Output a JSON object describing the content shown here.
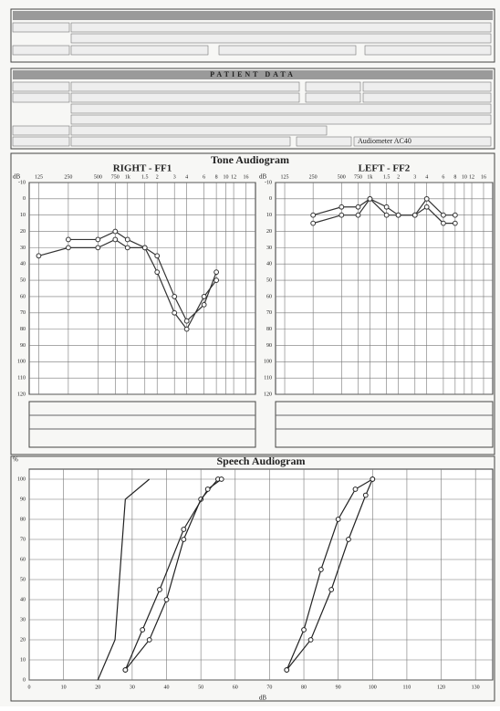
{
  "tone_title": "Tone Audiogram",
  "patient_data": {
    "title": "PATIENT DATA",
    "audiometer": "Audiometer AC40"
  },
  "chart_data": [
    {
      "type": "line",
      "title": "RIGHT - FF1",
      "ylabel": "dB",
      "x_log": true,
      "y_inverted": true,
      "xtick_position": "top",
      "grid": true,
      "xlim": [
        100,
        20000
      ],
      "ylim": [
        -10,
        120
      ],
      "xticks": [
        125,
        250,
        500,
        750,
        {
          "value": 1000,
          "label": "1k"
        },
        {
          "value": 1500,
          "label": "1.5"
        },
        {
          "value": 2000,
          "label": "2"
        },
        {
          "value": 3000,
          "label": "3"
        },
        {
          "value": 4000,
          "label": "4"
        },
        {
          "value": 6000,
          "label": "6"
        },
        {
          "value": 8000,
          "label": "8"
        },
        {
          "value": 10000,
          "label": "10"
        },
        {
          "value": 12000,
          "label": "12"
        },
        {
          "value": 16000,
          "label": "16"
        }
      ],
      "yticks": [
        -10,
        0,
        10,
        20,
        30,
        40,
        50,
        60,
        70,
        80,
        90,
        100,
        110,
        120
      ],
      "series": [
        {
          "color": "#333333",
          "marker": "circle",
          "x": [
            125,
            250,
            500,
            750,
            1000,
            1500,
            2000,
            3000,
            4000,
            6000,
            8000
          ],
          "values": [
            35,
            30,
            30,
            25,
            30,
            30,
            35,
            60,
            75,
            65,
            45
          ]
        },
        {
          "color": "#333333",
          "marker": "circle",
          "x": [
            250,
            500,
            750,
            1000,
            1500,
            2000,
            3000,
            4000,
            6000,
            8000
          ],
          "values": [
            25,
            25,
            20,
            25,
            30,
            45,
            70,
            80,
            60,
            50
          ]
        }
      ]
    },
    {
      "type": "line",
      "title": "LEFT - FF2",
      "ylabel": "dB",
      "x_log": true,
      "y_inverted": true,
      "xtick_position": "top",
      "grid": true,
      "xlim": [
        100,
        20000
      ],
      "ylim": [
        -10,
        120
      ],
      "xticks": [
        125,
        250,
        500,
        750,
        {
          "value": 1000,
          "label": "1k"
        },
        {
          "value": 1500,
          "label": "1.5"
        },
        {
          "value": 2000,
          "label": "2"
        },
        {
          "value": 3000,
          "label": "3"
        },
        {
          "value": 4000,
          "label": "4"
        },
        {
          "value": 6000,
          "label": "6"
        },
        {
          "value": 8000,
          "label": "8"
        },
        {
          "value": 10000,
          "label": "10"
        },
        {
          "value": 12000,
          "label": "12"
        },
        {
          "value": 16000,
          "label": "16"
        }
      ],
      "yticks": [
        -10,
        0,
        10,
        20,
        30,
        40,
        50,
        60,
        70,
        80,
        90,
        100,
        110,
        120
      ],
      "series": [
        {
          "color": "#333333",
          "marker": "circle",
          "x": [
            250,
            500,
            750,
            1000,
            1500,
            2000,
            3000,
            4000,
            6000,
            8000
          ],
          "values": [
            10,
            5,
            5,
            0,
            5,
            10,
            10,
            0,
            10,
            10
          ]
        },
        {
          "color": "#333333",
          "marker": "circle",
          "x": [
            250,
            500,
            750,
            1000,
            1500,
            2000,
            3000,
            4000,
            6000,
            8000
          ],
          "values": [
            15,
            10,
            10,
            0,
            10,
            10,
            10,
            5,
            15,
            15
          ]
        }
      ]
    },
    {
      "type": "line",
      "title": "Speech Audiogram",
      "ylabel": "%",
      "xlabel": "dB",
      "x_log": false,
      "y_inverted": false,
      "xtick_position": "bottom",
      "grid": true,
      "xlim": [
        0,
        135
      ],
      "ylim": [
        0,
        105
      ],
      "xticks": [
        0,
        10,
        20,
        30,
        40,
        50,
        60,
        70,
        80,
        90,
        100,
        110,
        120,
        130
      ],
      "yticks": [
        0,
        10,
        20,
        30,
        40,
        50,
        60,
        70,
        80,
        90,
        100
      ],
      "series": [
        {
          "color": "#222222",
          "marker": "none",
          "x": [
            20,
            25,
            28,
            35
          ],
          "values": [
            0,
            20,
            90,
            100
          ]
        },
        {
          "color": "#222222",
          "marker": "circle",
          "x": [
            28,
            35,
            40,
            45,
            50,
            55
          ],
          "values": [
            5,
            20,
            40,
            70,
            90,
            100
          ]
        },
        {
          "color": "#222222",
          "marker": "circle",
          "x": [
            28,
            33,
            38,
            45,
            52,
            56
          ],
          "values": [
            5,
            25,
            45,
            75,
            95,
            100
          ]
        },
        {
          "color": "#222222",
          "marker": "circle",
          "x": [
            75,
            80,
            85,
            90,
            95,
            100
          ],
          "values": [
            5,
            25,
            55,
            80,
            95,
            100
          ]
        },
        {
          "color": "#222222",
          "marker": "circle",
          "x": [
            75,
            82,
            88,
            93,
            98,
            100
          ],
          "values": [
            5,
            20,
            45,
            70,
            92,
            100
          ]
        }
      ]
    }
  ]
}
